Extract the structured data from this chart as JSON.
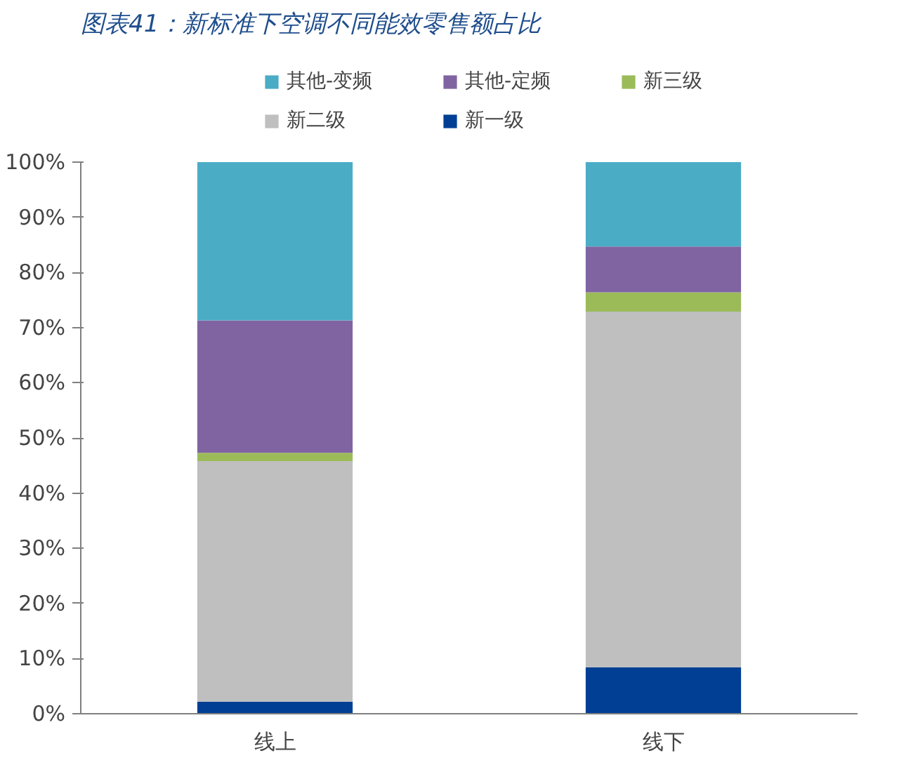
{
  "chart_data": {
    "type": "bar",
    "title": "图表41：新标准下空调不同能效零售额占比",
    "stacked": true,
    "categories": [
      "线上",
      "线下"
    ],
    "series": [
      {
        "name": "新一级",
        "color": "#003f94",
        "values": [
          2.2,
          8.4
        ]
      },
      {
        "name": "新二级",
        "color": "#bfbfbf",
        "values": [
          43.6,
          64.5
        ]
      },
      {
        "name": "新三级",
        "color": "#9bbb59",
        "values": [
          1.5,
          3.5
        ]
      },
      {
        "name": "其他-定频",
        "color": "#8064a2",
        "values": [
          24.0,
          8.3
        ]
      },
      {
        "name": "其他-变频",
        "color": "#4bacc6",
        "values": [
          28.7,
          15.3
        ]
      }
    ],
    "ylim": [
      0,
      100
    ],
    "yticks": [
      {
        "value": 0,
        "label": "0%"
      },
      {
        "value": 10,
        "label": "10%"
      },
      {
        "value": 20,
        "label": "20%"
      },
      {
        "value": 30,
        "label": "30%"
      },
      {
        "value": 40,
        "label": "40%"
      },
      {
        "value": 50,
        "label": "50%"
      },
      {
        "value": 60,
        "label": "60%"
      },
      {
        "value": 70,
        "label": "70%"
      },
      {
        "value": 80,
        "label": "80%"
      },
      {
        "value": 90,
        "label": "90%"
      },
      {
        "value": 100,
        "label": "100%"
      }
    ],
    "grid": false,
    "legend": "top"
  }
}
